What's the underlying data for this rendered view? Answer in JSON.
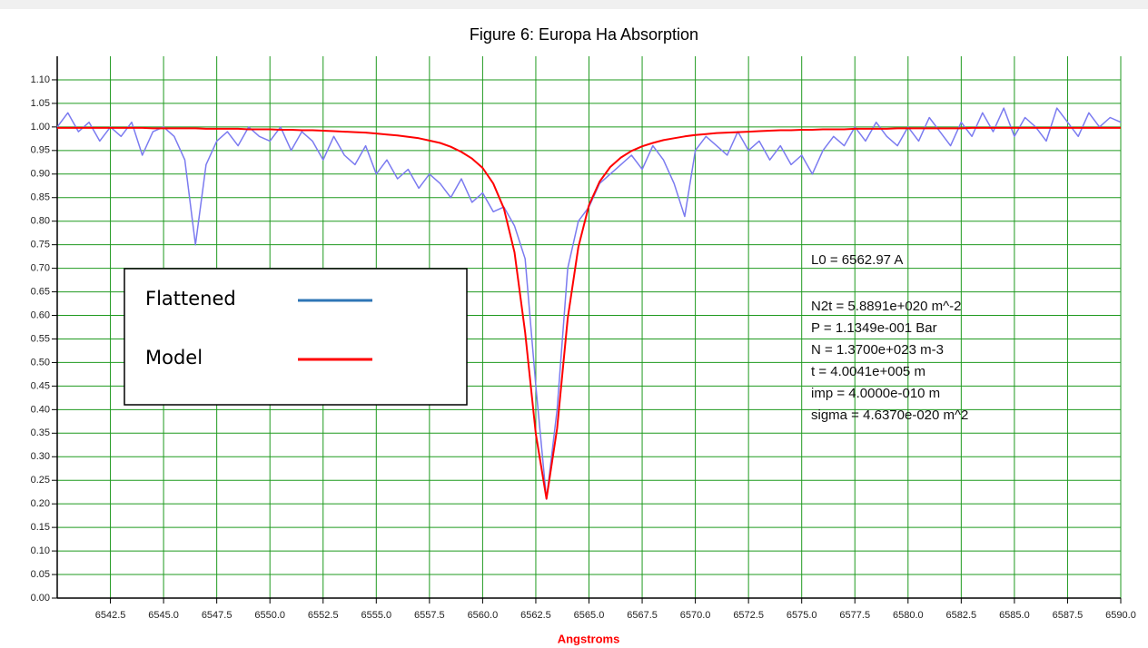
{
  "chart_data": {
    "type": "line",
    "title": "Figure 6: Europa Ha Absorption",
    "x_label": "Angstroms",
    "x": [
      6540,
      6540.5,
      6541,
      6541.5,
      6542,
      6542.5,
      6543,
      6543.5,
      6544,
      6544.5,
      6545,
      6545.5,
      6546,
      6546.5,
      6547,
      6547.5,
      6548,
      6548.5,
      6549,
      6549.5,
      6550,
      6550.5,
      6551,
      6551.5,
      6552,
      6552.5,
      6553,
      6553.5,
      6554,
      6554.5,
      6555,
      6555.5,
      6556,
      6556.5,
      6557,
      6557.5,
      6558,
      6558.5,
      6559,
      6559.5,
      6560,
      6560.5,
      6561,
      6561.5,
      6562,
      6562.5,
      6563,
      6563.5,
      6564,
      6564.5,
      6565,
      6565.5,
      6566,
      6566.5,
      6567,
      6567.5,
      6568,
      6568.5,
      6569,
      6569.5,
      6570,
      6570.5,
      6571,
      6571.5,
      6572,
      6572.5,
      6573,
      6573.5,
      6574,
      6574.5,
      6575,
      6575.5,
      6576,
      6576.5,
      6577,
      6577.5,
      6578,
      6578.5,
      6579,
      6579.5,
      6580,
      6580.5,
      6581,
      6581.5,
      6582,
      6582.5,
      6583,
      6583.5,
      6584,
      6584.5,
      6585,
      6585.5,
      6586,
      6586.5,
      6587,
      6587.5,
      6588,
      6588.5,
      6589,
      6589.5,
      6590
    ],
    "series": [
      {
        "name": "Flattened",
        "color": "#7b7bf0",
        "legend_color": "#2e75b6",
        "values": [
          1.0,
          1.03,
          0.99,
          1.01,
          0.97,
          1.0,
          0.98,
          1.01,
          0.94,
          0.99,
          1.0,
          0.98,
          0.93,
          0.75,
          0.92,
          0.97,
          0.99,
          0.96,
          1.0,
          0.98,
          0.97,
          1.0,
          0.95,
          0.99,
          0.97,
          0.93,
          0.98,
          0.94,
          0.92,
          0.96,
          0.9,
          0.93,
          0.89,
          0.91,
          0.87,
          0.9,
          0.88,
          0.85,
          0.89,
          0.84,
          0.86,
          0.82,
          0.83,
          0.79,
          0.72,
          0.45,
          0.21,
          0.4,
          0.7,
          0.8,
          0.83,
          0.88,
          0.9,
          0.92,
          0.94,
          0.91,
          0.96,
          0.93,
          0.88,
          0.81,
          0.95,
          0.98,
          0.96,
          0.94,
          0.99,
          0.95,
          0.97,
          0.93,
          0.96,
          0.92,
          0.94,
          0.9,
          0.95,
          0.98,
          0.96,
          1.0,
          0.97,
          1.01,
          0.98,
          0.96,
          1.0,
          0.97,
          1.02,
          0.99,
          0.96,
          1.01,
          0.98,
          1.03,
          0.99,
          1.04,
          0.98,
          1.02,
          1.0,
          0.97,
          1.04,
          1.01,
          0.98,
          1.03,
          1.0,
          1.02,
          1.01
        ]
      },
      {
        "name": "Model",
        "color": "#ff0000",
        "legend_color": "#ff0000",
        "values": [
          0.998,
          0.998,
          0.998,
          0.998,
          0.998,
          0.998,
          0.998,
          0.998,
          0.998,
          0.997,
          0.997,
          0.997,
          0.997,
          0.997,
          0.996,
          0.996,
          0.996,
          0.996,
          0.995,
          0.995,
          0.995,
          0.994,
          0.994,
          0.993,
          0.993,
          0.992,
          0.991,
          0.99,
          0.989,
          0.988,
          0.986,
          0.984,
          0.982,
          0.979,
          0.976,
          0.971,
          0.966,
          0.958,
          0.947,
          0.933,
          0.913,
          0.88,
          0.827,
          0.734,
          0.564,
          0.348,
          0.211,
          0.36,
          0.594,
          0.745,
          0.834,
          0.884,
          0.915,
          0.935,
          0.949,
          0.959,
          0.966,
          0.972,
          0.976,
          0.98,
          0.983,
          0.985,
          0.987,
          0.988,
          0.989,
          0.99,
          0.991,
          0.992,
          0.993,
          0.993,
          0.994,
          0.994,
          0.995,
          0.995,
          0.995,
          0.996,
          0.996,
          0.996,
          0.996,
          0.997,
          0.997,
          0.997,
          0.997,
          0.997,
          0.997,
          0.997,
          0.998,
          0.998,
          0.998,
          0.998,
          0.998,
          0.998,
          0.998,
          0.998,
          0.998,
          0.998,
          0.998,
          0.998,
          0.998,
          0.998,
          0.998
        ]
      }
    ],
    "xlim": [
      6540,
      6590
    ],
    "ylim": [
      0,
      1.15
    ],
    "xticks": [
      6542.5,
      {
        "value": 6545,
        "label": "6545.0"
      },
      6547.5,
      {
        "value": 6550,
        "label": "6550.0"
      },
      6552.5,
      {
        "value": 6555,
        "label": "6555.0"
      },
      6557.5,
      {
        "value": 6560,
        "label": "6560.0"
      },
      6562.5,
      {
        "value": 6565,
        "label": "6565.0"
      },
      6567.5,
      {
        "value": 6570,
        "label": "6570.0"
      },
      6572.5,
      {
        "value": 6575,
        "label": "6575.0"
      },
      6577.5,
      {
        "value": 6580,
        "label": "6580.0"
      },
      6582.5,
      {
        "value": 6585,
        "label": "6585.0"
      },
      6587.5,
      {
        "value": 6590,
        "label": "6590.0"
      }
    ],
    "yticks": [
      {
        "value": 0,
        "label": "0.00"
      },
      {
        "value": 0.05,
        "label": "0.05"
      },
      {
        "value": 0.1,
        "label": "0.10"
      },
      {
        "value": 0.15,
        "label": "0.15"
      },
      {
        "value": 0.2,
        "label": "0.20"
      },
      {
        "value": 0.25,
        "label": "0.25"
      },
      {
        "value": 0.3,
        "label": "0.30"
      },
      {
        "value": 0.35,
        "label": "0.35"
      },
      {
        "value": 0.4,
        "label": "0.40"
      },
      {
        "value": 0.45,
        "label": "0.45"
      },
      {
        "value": 0.5,
        "label": "0.50"
      },
      {
        "value": 0.55,
        "label": "0.55"
      },
      {
        "value": 0.6,
        "label": "0.60"
      },
      {
        "value": 0.65,
        "label": "0.65"
      },
      {
        "value": 0.7,
        "label": "0.70"
      },
      {
        "value": 0.75,
        "label": "0.75"
      },
      {
        "value": 0.8,
        "label": "0.80"
      },
      {
        "value": 0.85,
        "label": "0.85"
      },
      {
        "value": 0.9,
        "label": "0.90"
      },
      {
        "value": 0.95,
        "label": "0.95"
      },
      {
        "value": 1,
        "label": "1.00"
      },
      {
        "value": 1.05,
        "label": "1.05"
      },
      {
        "value": 1.1,
        "label": "1.10"
      }
    ],
    "grid": true,
    "grid_color": "#1f9a1f",
    "annotations": [
      "L0 = 6562.97 A",
      "N2t = 5.8891e+020 m^-2",
      "P = 1.1349e-001 Bar",
      "N = 1.3700e+023 m-3",
      "t = 4.0041e+005 m",
      "imp = 4.0000e-010 m",
      "sigma = 4.6370e-020 m^2"
    ]
  }
}
